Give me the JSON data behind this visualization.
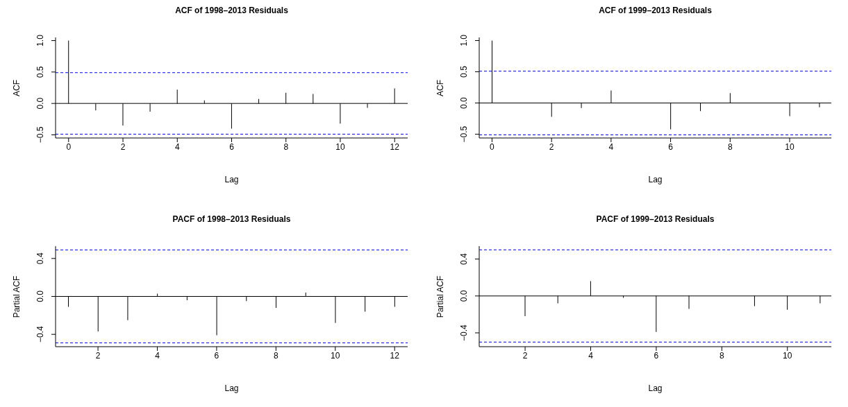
{
  "chart_data": [
    {
      "type": "bar",
      "title": "ACF of 1998–2013 Residuals",
      "xlabel": "Lag",
      "ylabel": "ACF",
      "color": "#000000",
      "x": [
        0,
        1,
        2,
        3,
        4,
        5,
        6,
        7,
        8,
        9,
        10,
        11,
        12
      ],
      "values": [
        1.0,
        -0.11,
        -0.35,
        -0.13,
        0.22,
        0.05,
        -0.4,
        0.07,
        0.17,
        0.15,
        -0.32,
        -0.07,
        0.24
      ],
      "xlim": [
        -0.48,
        12.48
      ],
      "xticks": [
        0,
        2,
        4,
        6,
        8,
        10,
        12
      ],
      "ylim": [
        -0.55,
        1.05
      ],
      "yticks": [
        {
          "value": -0.5,
          "label": "−0.5"
        },
        {
          "value": 0,
          "label": "0.0"
        },
        {
          "value": 0.5,
          "label": "0.5"
        },
        {
          "value": 1,
          "label": "1.0"
        }
      ],
      "ref_lines": [
        {
          "axis": "y",
          "value": 0,
          "color": "#000000",
          "line_style": "solid"
        },
        {
          "axis": "y",
          "value": 0.49,
          "color": "#0000ff",
          "line_style": "dashed"
        },
        {
          "axis": "y",
          "value": -0.49,
          "color": "#0000ff",
          "line_style": "dashed"
        }
      ]
    },
    {
      "type": "bar",
      "title": "ACF of 1999–2013 Residuals",
      "xlabel": "Lag",
      "ylabel": "ACF",
      "color": "#000000",
      "x": [
        0,
        1,
        2,
        3,
        4,
        5,
        6,
        7,
        8,
        9,
        10,
        11
      ],
      "values": [
        1.0,
        0.0,
        -0.22,
        -0.08,
        0.2,
        null,
        -0.42,
        -0.13,
        0.16,
        null,
        -0.21,
        -0.07
      ],
      "xlim": [
        -0.43,
        11.4
      ],
      "xticks": [
        0,
        2,
        4,
        6,
        8,
        10
      ],
      "ylim": [
        -0.56,
        1.05
      ],
      "yticks": [
        {
          "value": -0.5,
          "label": "−0.5"
        },
        {
          "value": 0,
          "label": "0.0"
        },
        {
          "value": 0.5,
          "label": "0.5"
        },
        {
          "value": 1,
          "label": "1.0"
        }
      ],
      "ref_lines": [
        {
          "axis": "y",
          "value": 0,
          "color": "#000000",
          "line_style": "solid"
        },
        {
          "axis": "y",
          "value": 0.51,
          "color": "#0000ff",
          "line_style": "dashed"
        },
        {
          "axis": "y",
          "value": -0.51,
          "color": "#0000ff",
          "line_style": "dashed"
        }
      ]
    },
    {
      "type": "bar",
      "title": "PACF of 1998–2013 Residuals",
      "xlabel": "Lag",
      "ylabel": "Partial ACF",
      "color": "#000000",
      "x": [
        1,
        2,
        3,
        4,
        5,
        6,
        7,
        8,
        9,
        10,
        11,
        12
      ],
      "values": [
        -0.11,
        -0.37,
        -0.25,
        0.03,
        -0.04,
        -0.41,
        -0.05,
        -0.12,
        0.04,
        -0.28,
        -0.16,
        -0.11
      ],
      "xlim": [
        0.57,
        12.44
      ],
      "xticks": [
        2,
        4,
        6,
        8,
        10,
        12
      ],
      "ylim": [
        -0.53,
        0.53
      ],
      "yticks": [
        {
          "value": -0.4,
          "label": "−0.4"
        },
        {
          "value": 0,
          "label": "0.0"
        },
        {
          "value": 0.4,
          "label": "0.4"
        }
      ],
      "ref_lines": [
        {
          "axis": "y",
          "value": 0,
          "color": "#000000",
          "line_style": "solid"
        },
        {
          "axis": "y",
          "value": 0.49,
          "color": "#0000ff",
          "line_style": "dashed"
        },
        {
          "axis": "y",
          "value": -0.49,
          "color": "#0000ff",
          "line_style": "dashed"
        }
      ]
    },
    {
      "type": "bar",
      "title": "PACF of 1999–2013 Residuals",
      "xlabel": "Lag",
      "ylabel": "Partial ACF",
      "color": "#000000",
      "x": [
        1,
        2,
        3,
        4,
        5,
        6,
        7,
        8,
        9,
        10,
        11
      ],
      "values": [
        0.0,
        -0.22,
        -0.08,
        0.16,
        -0.02,
        -0.39,
        -0.14,
        0.0,
        -0.11,
        -0.15,
        -0.08
      ],
      "xlim": [
        0.6,
        11.34
      ],
      "xticks": [
        2,
        4,
        6,
        8,
        10
      ],
      "ylim": [
        -0.55,
        0.54
      ],
      "yticks": [
        {
          "value": -0.4,
          "label": "−0.4"
        },
        {
          "value": 0,
          "label": "0.0"
        },
        {
          "value": 0.4,
          "label": "0.4"
        }
      ],
      "ref_lines": [
        {
          "axis": "y",
          "value": 0,
          "color": "#000000",
          "line_style": "solid"
        },
        {
          "axis": "y",
          "value": 0.5,
          "color": "#0000ff",
          "line_style": "dashed"
        },
        {
          "axis": "y",
          "value": -0.5,
          "color": "#0000ff",
          "line_style": "dashed"
        }
      ]
    }
  ]
}
